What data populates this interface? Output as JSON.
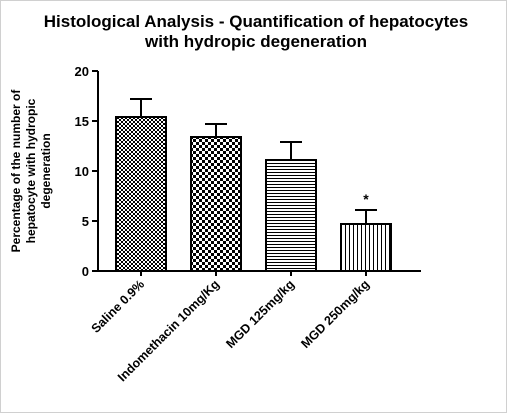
{
  "chart_data": {
    "type": "bar",
    "title_lines": [
      "Histological Analysis - Quantification of hepatocytes",
      "with hydropic degeneration"
    ],
    "ylabel_lines": [
      "Percentage of the number of",
      "hepatocyte with hydropic",
      "degeneration"
    ],
    "xlabel": "",
    "categories": [
      "Saline 0.9%",
      "Indomethacin 10mg/Kg",
      "MGD 125mg/kg",
      "MGD 250mg/kg"
    ],
    "values": [
      15.4,
      13.4,
      11.1,
      4.7
    ],
    "errors": [
      1.8,
      1.3,
      1.8,
      1.4
    ],
    "annotations": [
      "",
      "",
      "",
      "*"
    ],
    "patterns": [
      "crosshatch-dense",
      "checkerboard",
      "horizontal-lines",
      "vertical-lines"
    ],
    "ylim": [
      0,
      20
    ],
    "yticks": [
      0,
      5,
      10,
      15,
      20
    ],
    "grid": false,
    "legend": "none",
    "colors": {
      "bar_stroke": "#000000",
      "pattern": "#000000",
      "background": "#ffffff"
    }
  }
}
